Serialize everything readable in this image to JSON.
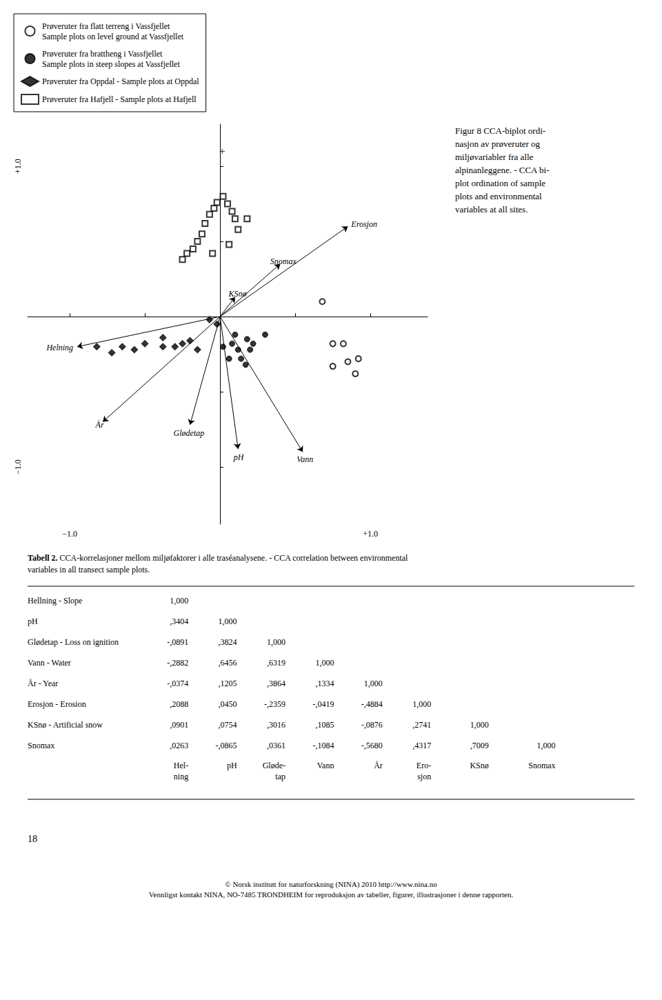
{
  "chart_data": {
    "type": "scatter",
    "xlim": [
      -1.28,
      1.38
    ],
    "ylim": [
      -1.38,
      1.28
    ],
    "xticks": [
      {
        "value": -1.0,
        "label": "−1.0"
      },
      {
        "value": -0.5,
        "label": null
      },
      {
        "value": 0.5,
        "label": null
      },
      {
        "value": 1.0,
        "label": "+1.0"
      }
    ],
    "yticks": [
      {
        "value": -1.0,
        "label": "−1.0"
      },
      {
        "value": -0.5,
        "label": null
      },
      {
        "value": 0.5,
        "label": null
      },
      {
        "value": 1.0,
        "label": "+1.0"
      }
    ],
    "grid": false,
    "legend": "upper left",
    "series": [
      {
        "name": "Prøveruter fra flatt terreng i Vassfjellet\nSample plots on level ground at Vassfjellet",
        "color": "#000000",
        "marker": "open circle",
        "values": [
          [
            0.68,
            0.1
          ],
          [
            0.75,
            -0.18
          ],
          [
            0.82,
            -0.18
          ],
          [
            0.85,
            -0.3
          ],
          [
            0.75,
            -0.33
          ],
          [
            0.92,
            -0.28
          ],
          [
            0.9,
            -0.38
          ]
        ]
      },
      {
        "name": "Prøveruter fra brattheng i Vassfjellet\nSample plots in steep slopes at Vassfjellet",
        "color": "#000000",
        "marker": "filled circle",
        "values": [
          [
            0.08,
            -0.18
          ],
          [
            0.12,
            -0.22
          ],
          [
            0.14,
            -0.28
          ],
          [
            0.06,
            -0.28
          ],
          [
            0.17,
            -0.32
          ],
          [
            0.2,
            -0.22
          ],
          [
            0.22,
            -0.18
          ],
          [
            0.18,
            -0.15
          ],
          [
            0.1,
            -0.12
          ],
          [
            0.02,
            -0.2
          ],
          [
            0.3,
            -0.12
          ]
        ]
      },
      {
        "name": "Prøveruter fra Oppdal - Sample plots at Oppdal",
        "color": "#000000",
        "marker": "filled diamond",
        "values": [
          [
            -0.82,
            -0.2
          ],
          [
            -0.72,
            -0.24
          ],
          [
            -0.65,
            -0.2
          ],
          [
            -0.57,
            -0.22
          ],
          [
            -0.5,
            -0.18
          ],
          [
            -0.38,
            -0.2
          ],
          [
            -0.3,
            -0.2
          ],
          [
            -0.25,
            -0.18
          ],
          [
            -0.2,
            -0.16
          ],
          [
            -0.15,
            -0.22
          ],
          [
            -0.38,
            -0.14
          ],
          [
            -0.02,
            -0.05
          ],
          [
            -0.07,
            -0.02
          ]
        ]
      },
      {
        "name": "Prøveruter fra Hafjell - Sample plots at Hafjell",
        "color": "#000000",
        "marker": "open square",
        "values": [
          [
            -0.07,
            0.68
          ],
          [
            -0.04,
            0.72
          ],
          [
            -0.02,
            0.76
          ],
          [
            0.02,
            0.8
          ],
          [
            0.05,
            0.75
          ],
          [
            0.08,
            0.7
          ],
          [
            0.1,
            0.65
          ],
          [
            -0.1,
            0.62
          ],
          [
            -0.12,
            0.55
          ],
          [
            -0.15,
            0.5
          ],
          [
            -0.18,
            0.45
          ],
          [
            -0.22,
            0.42
          ],
          [
            -0.25,
            0.38
          ],
          [
            0.12,
            0.58
          ],
          [
            0.06,
            0.48
          ],
          [
            -0.05,
            0.42
          ],
          [
            0.18,
            0.65
          ]
        ]
      }
    ],
    "arrows": {
      "color": "#000000",
      "vectors": [
        {
          "name": "Erosjon",
          "dx": 0.85,
          "dy": 0.6
        },
        {
          "name": "Snomax",
          "dx": 0.4,
          "dy": 0.35
        },
        {
          "name": "KSnø",
          "dx": 0.1,
          "dy": 0.13
        },
        {
          "name": "Helning",
          "dx": -0.95,
          "dy": -0.2
        },
        {
          "name": "År",
          "dx": -0.78,
          "dy": -0.7
        },
        {
          "name": "Gløde­tap",
          "dx": -0.2,
          "dy": -0.72
        },
        {
          "name": "pH",
          "dx": 0.12,
          "dy": -0.88
        },
        {
          "name": "Vann",
          "dx": 0.55,
          "dy": -0.9
        }
      ]
    },
    "annotations": [
      {
        "text": "+",
        "x": 0.015,
        "y": 1.1
      }
    ],
    "caption": "Figur 8 CCA-biplot ordi-\nnasjon av prøveruter og\nmiljøvariabler fra alle\nalpinanleggene. - CCA bi-\nplot ordination of sample\nplots and environmental\nvariables at all sites.",
    "table": {
      "title_bold": "Tabell 2.",
      "title_rest": " CCA-korrelasjoner mellom miljøfaktorer i alle traséanalysene. - CCA correlation between environmental\nvariables in all transect sample plots.",
      "rows": [
        [
          "Hellning - Slope",
          "1,000",
          null,
          null,
          null,
          null,
          null,
          null,
          null
        ],
        [
          "pH",
          ",3404",
          "1,000",
          null,
          null,
          null,
          null,
          null,
          null
        ],
        [
          "Gløde­tap - Loss on ignition",
          "-,0891",
          ",3824",
          "1,000",
          null,
          null,
          null,
          null,
          null
        ],
        [
          "Vann - Water",
          "-,2882",
          ",6456",
          ",6319",
          "1,000",
          null,
          null,
          null,
          null
        ],
        [
          "År - Year",
          "-,0374",
          ",1205",
          ",3864",
          ",1334",
          "1,000",
          null,
          null,
          null
        ],
        [
          "Erosjon - Erosion",
          ",2088",
          ",0450",
          "-,2359",
          "-,0419",
          "-,4884",
          "1,000",
          null,
          null
        ],
        [
          "KSnø - Artificial snow",
          ",0901",
          ",0754",
          ",3016",
          ",1085",
          "-,0876",
          ",2741",
          "1,000",
          null
        ],
        [
          "Snomax",
          ",0263",
          "-,0865",
          ",0361",
          "-,1084",
          "-,5680",
          ",4317",
          ",7009",
          "1,000"
        ]
      ],
      "col_headers": [
        "Hel-\nning",
        "pH",
        "Gløde-\ntap",
        "Vann",
        "År",
        "Ero-\nsjon",
        "KSnø",
        "Snomax"
      ]
    },
    "page_number": "18",
    "footer": "© Norsk institutt for naturforskning (NINA) 2010 http://www.nina.no\nVennligst kontakt NINA, NO-7485 TRONDHEIM for reproduksjon av tabeller, figurer, illustrasjoner i denne rapporten."
  }
}
